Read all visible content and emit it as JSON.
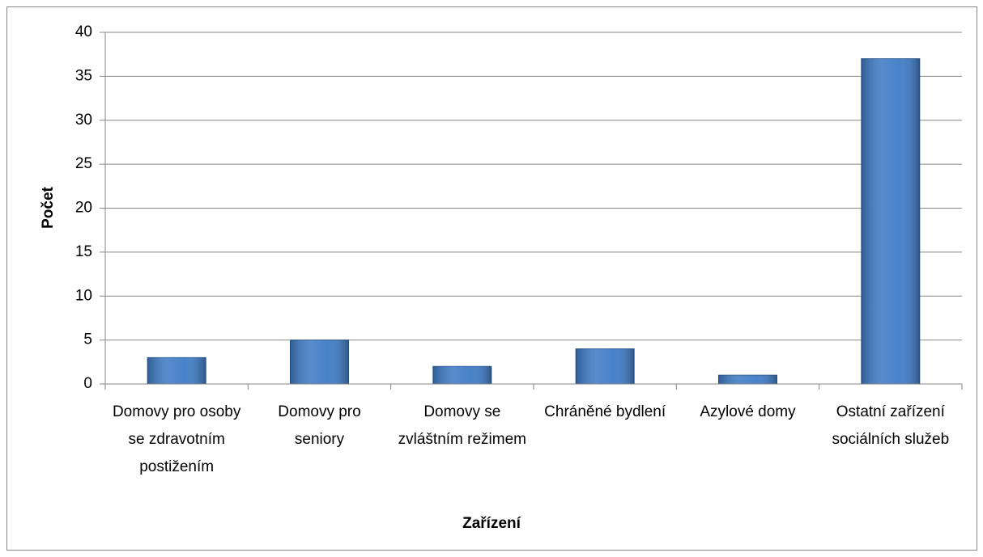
{
  "chart_data": {
    "type": "bar",
    "categories": [
      "Domovy pro osoby se zdravotním postižením",
      "Domovy pro seniory",
      "Domovy se zvláštním režimem",
      "Chráněné bydlení",
      "Azylové domy",
      "Ostatní zařízení sociálních služeb"
    ],
    "values": [
      3,
      5,
      2,
      4,
      1,
      37
    ],
    "color": "#3f7cc6",
    "xlabel": "Zařízení",
    "ylabel": "Počet",
    "ylim": [
      0,
      40
    ],
    "yticks": [
      0,
      5,
      10,
      15,
      20,
      25,
      30,
      35,
      40
    ],
    "grid": true
  }
}
